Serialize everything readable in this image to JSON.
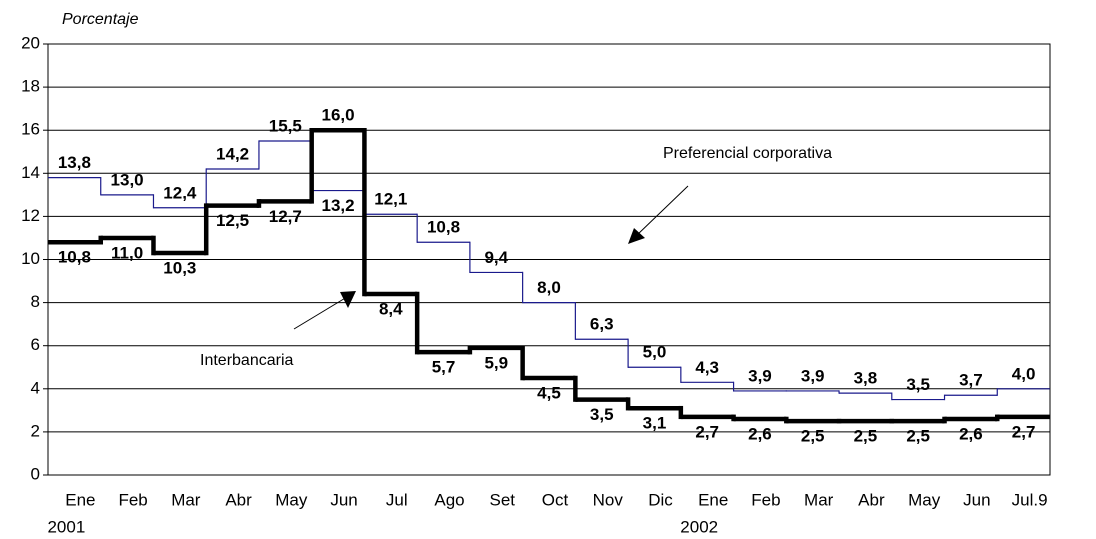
{
  "chart_data": {
    "type": "step-line",
    "y_axis_label": "Porcentaje",
    "categories": [
      "Ene",
      "Feb",
      "Mar",
      "Abr",
      "May",
      "Jun",
      "Jul",
      "Ago",
      "Set",
      "Oct",
      "Nov",
      "Dic",
      "Ene",
      "Feb",
      "Mar",
      "Abr",
      "May",
      "Jun",
      "Jul.9"
    ],
    "years": [
      "2001",
      "2002"
    ],
    "series": [
      {
        "name": "Preferencial corporativa",
        "color": "#1a1a8c",
        "values": [
          13.8,
          13.0,
          12.4,
          14.2,
          15.5,
          13.2,
          12.1,
          10.8,
          9.4,
          8.0,
          6.3,
          5.0,
          4.3,
          3.9,
          3.9,
          3.8,
          3.5,
          3.7,
          4.0
        ],
        "value_labels": [
          "13,8",
          "13,0",
          "12,4",
          "14,2",
          "15,5",
          "13,2",
          "12,1",
          "10,8",
          "9,4",
          "8,0",
          "6,3",
          "5,0",
          "4,3",
          "3,9",
          "3,9",
          "3,8",
          "3,5",
          "3,7",
          "4,0"
        ]
      },
      {
        "name": "Interbancaria",
        "color": "#000000",
        "values": [
          10.8,
          11.0,
          10.3,
          12.5,
          12.7,
          16.0,
          8.4,
          5.7,
          5.9,
          4.5,
          3.5,
          3.1,
          2.7,
          2.6,
          2.5,
          2.5,
          2.5,
          2.6,
          2.7
        ],
        "value_labels": [
          "10,8",
          "11,0",
          "10,3",
          "12,5",
          "12,7",
          "16,0",
          "8,4",
          "5,7",
          "5,9",
          "4,5",
          "3,5",
          "3,1",
          "2,7",
          "2,6",
          "2,5",
          "2,5",
          "2,5",
          "2,6",
          "2,7"
        ]
      }
    ],
    "ylim": [
      0,
      20
    ],
    "yticks": [
      0,
      2,
      4,
      6,
      8,
      10,
      12,
      14,
      16,
      18,
      20
    ],
    "grid": true
  }
}
